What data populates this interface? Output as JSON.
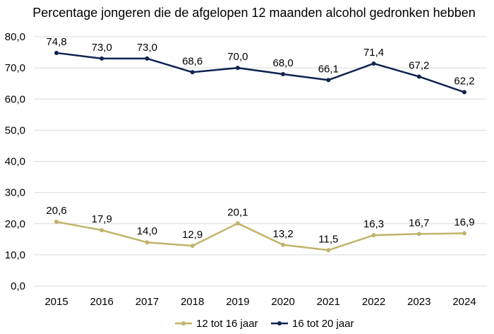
{
  "chart_data": {
    "type": "line",
    "title": "Percentage jongeren die de afgelopen 12 maanden alcohol gedronken hebben",
    "categories": [
      "2015",
      "2016",
      "2017",
      "2018",
      "2019",
      "2020",
      "2021",
      "2022",
      "2023",
      "2024"
    ],
    "ylim": [
      0,
      80
    ],
    "yticks": [
      0,
      10,
      20,
      30,
      40,
      50,
      60,
      70,
      80
    ],
    "ytick_labels": [
      "0,0",
      "10,0",
      "20,0",
      "30,0",
      "40,0",
      "50,0",
      "60,0",
      "70,0",
      "80,0"
    ],
    "grid": "horizontal",
    "legend_position": "bottom",
    "series": [
      {
        "name": "12 tot 16 jaar",
        "color": "#BFB46B",
        "values": [
          20.6,
          17.9,
          14.0,
          12.9,
          20.1,
          13.2,
          11.5,
          16.3,
          16.7,
          16.9
        ],
        "labels": [
          "20,6",
          "17,9",
          "14,0",
          "12,9",
          "20,1",
          "13,2",
          "11,5",
          "16,3",
          "16,7",
          "16,9"
        ]
      },
      {
        "name": "16 tot 20 jaar",
        "color": "#0F2350",
        "values": [
          74.8,
          73.0,
          73.0,
          68.6,
          70.0,
          68.0,
          66.1,
          71.4,
          67.2,
          62.2
        ],
        "labels": [
          "74,8",
          "73,0",
          "73,0",
          "68,6",
          "70,0",
          "68,0",
          "66,1",
          "71,4",
          "67,2",
          "62,2"
        ]
      }
    ]
  }
}
